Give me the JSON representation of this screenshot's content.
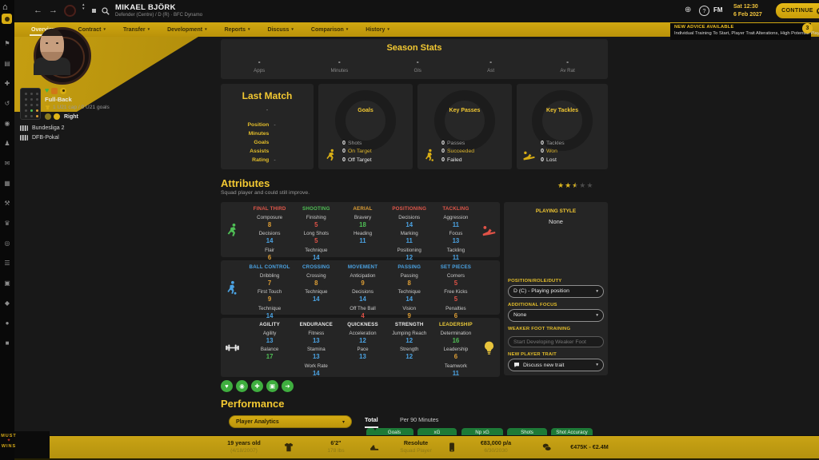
{
  "topbar": {
    "title": "MIKAEL BJÖRK",
    "subtitle": "Defender (Centre) / D (R) · BFC Dynamo",
    "date_line1": "Sat 12:30",
    "date_line2": "6 Feb 2027",
    "continue_label": "CONTINUE",
    "fm_logo": "FM",
    "help_glyph": "?"
  },
  "advice": {
    "title": "NEW ADVICE AVAILABLE",
    "body": "Individual Training To Start, Player Trait Alterations, High Potential Players",
    "badge": "3"
  },
  "nav": {
    "tabs": [
      {
        "label": "Overview",
        "active": true
      },
      {
        "label": "Contract",
        "active": false
      },
      {
        "label": "Transfer",
        "active": false
      },
      {
        "label": "Development",
        "active": false
      },
      {
        "label": "Reports",
        "active": false
      },
      {
        "label": "Discuss",
        "active": false
      },
      {
        "label": "Comparison",
        "active": false
      },
      {
        "label": "History",
        "active": false
      }
    ]
  },
  "sidebar": {
    "icons": [
      {
        "name": "flag-icon",
        "glyph": "⚑"
      },
      {
        "name": "squad-icon",
        "glyph": "▤"
      },
      {
        "name": "medical-icon",
        "glyph": "✚"
      },
      {
        "name": "history-icon",
        "glyph": "↺"
      },
      {
        "name": "ball-icon",
        "glyph": "◉"
      },
      {
        "name": "tactics-icon",
        "glyph": "♟"
      },
      {
        "name": "mail-icon",
        "glyph": "✉"
      },
      {
        "name": "schedule-icon",
        "glyph": "▦"
      },
      {
        "name": "training-icon",
        "glyph": "⚒"
      },
      {
        "name": "competition-icon",
        "glyph": "♛"
      },
      {
        "name": "scouting-icon",
        "glyph": "◎"
      },
      {
        "name": "list-icon",
        "glyph": "☰"
      },
      {
        "name": "club-icon",
        "glyph": "▣"
      },
      {
        "name": "finance-icon",
        "glyph": "◆"
      },
      {
        "name": "world-icon",
        "glyph": "●"
      },
      {
        "name": "settings-icon",
        "glyph": "■"
      }
    ]
  },
  "watermark": {
    "line1": "MUST",
    "line2": "WINS",
    "figure": "✦"
  },
  "player_panel": {
    "role": "Full-Back",
    "intl": "1 U21 cap / 0 U21 goals",
    "foot": "Right",
    "competitions": [
      "Bundesliga 2",
      "DFB-Pokal"
    ]
  },
  "season": {
    "title": "Season Stats",
    "columns": [
      {
        "value": "-",
        "label": "Apps"
      },
      {
        "value": "-",
        "label": "Minutes"
      },
      {
        "value": "-",
        "label": "Gls"
      },
      {
        "value": "-",
        "label": "Ast"
      },
      {
        "value": "-",
        "label": "Av Rat"
      }
    ]
  },
  "last_match": {
    "title": "Last Match",
    "opponent": "-",
    "rows": [
      {
        "label": "Position",
        "value": "-"
      },
      {
        "label": "Minutes",
        "value": ""
      },
      {
        "label": "Goals",
        "value": ""
      },
      {
        "label": "Assists",
        "value": ""
      },
      {
        "label": "Rating",
        "value": "-"
      }
    ]
  },
  "circles": [
    {
      "title": "Goals",
      "icon": "runner",
      "stats": [
        {
          "value": "0",
          "label": "Shots",
          "tone": "muted"
        },
        {
          "value": "0",
          "label": "On Target",
          "tone": "accent"
        },
        {
          "value": "0",
          "label": "Off Target",
          "tone": "plain"
        }
      ]
    },
    {
      "title": "Key Passes",
      "icon": "dribble",
      "stats": [
        {
          "value": "0",
          "label": "Passes",
          "tone": "muted"
        },
        {
          "value": "0",
          "label": "Succeeded",
          "tone": "accent"
        },
        {
          "value": "0",
          "label": "Failed",
          "tone": "plain"
        }
      ]
    },
    {
      "title": "Key Tackles",
      "icon": "slide",
      "stats": [
        {
          "value": "0",
          "label": "Tackles",
          "tone": "muted"
        },
        {
          "value": "0",
          "label": "Won",
          "tone": "accent"
        },
        {
          "value": "0",
          "label": "Lost",
          "tone": "plain"
        }
      ]
    }
  ],
  "attributes": {
    "title": "Attributes",
    "subtitle": "Squad player and could still improve.",
    "stars": {
      "full": 2,
      "half": 1,
      "empty": 2
    },
    "rows": [
      {
        "left_icon": {
          "name": "running-player-icon",
          "color": "#4fbf55"
        },
        "right_icon": {
          "name": "sliding-tackle-icon",
          "color": "#e05247"
        },
        "left_glyph": "runner",
        "right_glyph": "slide",
        "groups": [
          {
            "name": "FINAL THIRD",
            "color": "#e2574a",
            "attrs": [
              {
                "n": "Composure",
                "v": "8",
                "c": "orange"
              },
              {
                "n": "Decisions",
                "v": "14",
                "c": "blue"
              },
              {
                "n": "Flair",
                "v": "6",
                "c": "orange"
              }
            ]
          },
          {
            "name": "SHOOTING",
            "color": "#4fbf55",
            "attrs": [
              {
                "n": "Finishing",
                "v": "5",
                "c": "red"
              },
              {
                "n": "Long Shots",
                "v": "5",
                "c": "red"
              },
              {
                "n": "Technique",
                "v": "14",
                "c": "blue"
              }
            ]
          },
          {
            "name": "AERIAL",
            "color": "#df9f35",
            "attrs": [
              {
                "n": "Bravery",
                "v": "18",
                "c": "green"
              },
              {
                "n": "Heading",
                "v": "11",
                "c": "blue"
              }
            ]
          },
          {
            "name": "POSITIONING",
            "color": "#e2574a",
            "attrs": [
              {
                "n": "Decisions",
                "v": "14",
                "c": "blue"
              },
              {
                "n": "Marking",
                "v": "11",
                "c": "blue"
              },
              {
                "n": "Positioning",
                "v": "12",
                "c": "blue"
              }
            ]
          },
          {
            "name": "TACKLING",
            "color": "#e2574a",
            "attrs": [
              {
                "n": "Aggression",
                "v": "11",
                "c": "blue"
              },
              {
                "n": "Focus",
                "v": "13",
                "c": "blue"
              },
              {
                "n": "Tackling",
                "v": "11",
                "c": "blue"
              }
            ]
          }
        ]
      },
      {
        "left_icon": {
          "name": "dribbling-player-icon",
          "color": "#4ba3e3"
        },
        "right_icon": null,
        "left_glyph": "dribble",
        "right_glyph": null,
        "groups": [
          {
            "name": "BALL CONTROL",
            "color": "#4ba3e3",
            "attrs": [
              {
                "n": "Dribbling",
                "v": "7",
                "c": "orange"
              },
              {
                "n": "First Touch",
                "v": "9",
                "c": "orange"
              },
              {
                "n": "Technique",
                "v": "14",
                "c": "blue"
              }
            ]
          },
          {
            "name": "CROSSING",
            "color": "#4ba3e3",
            "attrs": [
              {
                "n": "Crossing",
                "v": "8",
                "c": "orange"
              },
              {
                "n": "Technique",
                "v": "14",
                "c": "blue"
              }
            ]
          },
          {
            "name": "MOVEMENT",
            "color": "#4ba3e3",
            "attrs": [
              {
                "n": "Anticipation",
                "v": "9",
                "c": "orange"
              },
              {
                "n": "Decisions",
                "v": "14",
                "c": "blue"
              },
              {
                "n": "Off The Ball",
                "v": "4",
                "c": "red"
              }
            ]
          },
          {
            "name": "PASSING",
            "color": "#4ba3e3",
            "attrs": [
              {
                "n": "Passing",
                "v": "8",
                "c": "orange"
              },
              {
                "n": "Technique",
                "v": "14",
                "c": "blue"
              },
              {
                "n": "Vision",
                "v": "9",
                "c": "orange"
              }
            ]
          },
          {
            "name": "SET PIECES",
            "color": "#4ba3e3",
            "attrs": [
              {
                "n": "Corners",
                "v": "5",
                "c": "red"
              },
              {
                "n": "Free Kicks",
                "v": "5",
                "c": "red"
              },
              {
                "n": "Penalties",
                "v": "6",
                "c": "orange"
              }
            ]
          }
        ]
      },
      {
        "left_icon": {
          "name": "dumbbell-icon",
          "color": "#e8e8e8"
        },
        "right_icon": {
          "name": "lightbulb-icon",
          "color": "#e8c43c"
        },
        "left_glyph": "dumbbell",
        "right_glyph": "bulb",
        "groups": [
          {
            "name": "AGILITY",
            "color": "#e8e8e8",
            "attrs": [
              {
                "n": "Agility",
                "v": "13",
                "c": "blue"
              },
              {
                "n": "Balance",
                "v": "17",
                "c": "green"
              }
            ]
          },
          {
            "name": "ENDURANCE",
            "color": "#e8e8e8",
            "attrs": [
              {
                "n": "Fitness",
                "v": "13",
                "c": "blue"
              },
              {
                "n": "Stamina",
                "v": "13",
                "c": "blue"
              },
              {
                "n": "Work Rate",
                "v": "14",
                "c": "blue"
              }
            ]
          },
          {
            "name": "QUICKNESS",
            "color": "#e8e8e8",
            "attrs": [
              {
                "n": "Acceleration",
                "v": "12",
                "c": "blue"
              },
              {
                "n": "Pace",
                "v": "13",
                "c": "blue"
              }
            ]
          },
          {
            "name": "STRENGTH",
            "color": "#e8e8e8",
            "attrs": [
              {
                "n": "Jumping Reach",
                "v": "12",
                "c": "blue"
              },
              {
                "n": "Strength",
                "v": "12",
                "c": "blue"
              }
            ]
          },
          {
            "name": "LEADERSHIP",
            "color": "#eccb3a",
            "attrs": [
              {
                "n": "Determination",
                "v": "16",
                "c": "green"
              },
              {
                "n": "Leadership",
                "v": "6",
                "c": "orange"
              },
              {
                "n": "Teamwork",
                "v": "11",
                "c": "blue"
              }
            ]
          }
        ]
      }
    ],
    "status_icons": [
      {
        "name": "condition-icon",
        "glyph": "♥"
      },
      {
        "name": "sharpness-icon",
        "glyph": "◉"
      },
      {
        "name": "training-icon",
        "glyph": "✚"
      },
      {
        "name": "bandage-icon",
        "glyph": "▣"
      },
      {
        "name": "form-icon",
        "glyph": "➔"
      }
    ]
  },
  "right_panel": {
    "style_label": "PLAYING STYLE",
    "style_value": "None",
    "fields": [
      {
        "name": "position-role-duty-select",
        "label": "POSITION/ROLE/DUTY",
        "type": "select",
        "value": "D (C) - Playing position"
      },
      {
        "name": "additional-focus-select",
        "label": "ADDITIONAL FOCUS",
        "type": "select",
        "value": "None"
      },
      {
        "name": "weaker-foot-input",
        "label": "WEAKER FOOT TRAINING",
        "type": "input",
        "placeholder": "Start Developing Weaker Foot"
      },
      {
        "name": "new-player-trait-select",
        "label": "NEW PLAYER TRAIT",
        "type": "select",
        "value": "Discuss new trait",
        "icon": "speech-bubble-icon"
      }
    ]
  },
  "performance": {
    "title": "Performance",
    "selector": "Player Analytics",
    "tabs": [
      {
        "label": "Total",
        "active": true
      },
      {
        "label": "Per 90 Minutes",
        "active": false
      }
    ],
    "pills": [
      "Goals",
      "xG",
      "Np xG",
      "Shots",
      "Shot Accuracy"
    ]
  },
  "bottom_bar": {
    "items": [
      {
        "primary": "19 years old",
        "secondary": "(4/18/2007)"
      },
      {
        "primary": "6'2\"",
        "secondary": "178 lbs"
      },
      {
        "primary": "Resolute",
        "secondary": "Squad Player"
      },
      {
        "primary": "€83,000 p/a",
        "secondary": "6/30/2030"
      },
      {
        "primary": "€475K - €2.4M",
        "secondary": ""
      }
    ],
    "icons": [
      "shirt-icon",
      "boot-icon",
      "contract-icon",
      "money-icon"
    ]
  },
  "colors": {
    "gold": "#c9a00e",
    "title_yellow": "#f2c832",
    "attr_blue": "#4ba3e3",
    "attr_green": "#4fbf55",
    "attr_orange": "#df9f35",
    "attr_red": "#e05247",
    "pill_green": "#1d7a37"
  }
}
